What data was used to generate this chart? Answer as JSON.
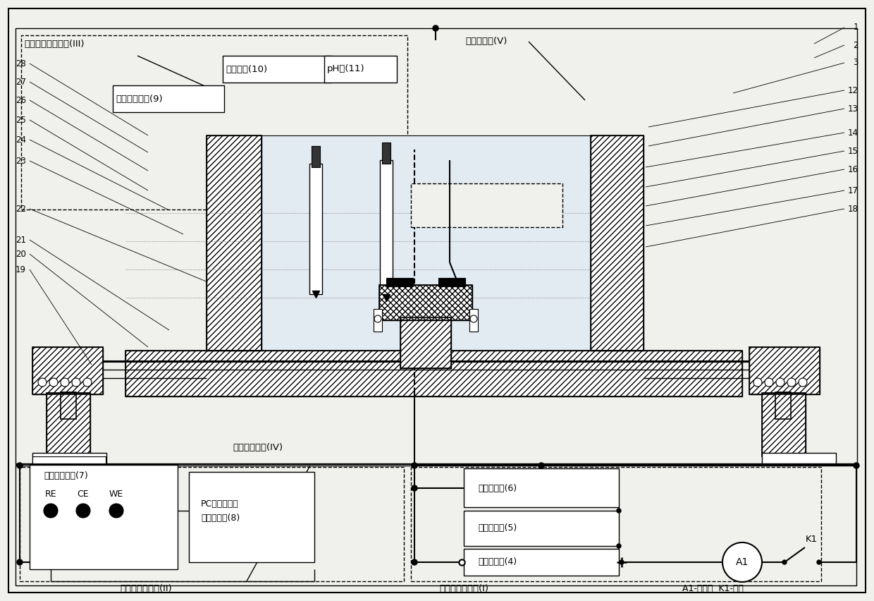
{
  "fig_w": 12.4,
  "fig_h": 8.52,
  "bg": "#f0f0ec",
  "lc": "#000000",
  "sysIII": "土壤模拟溶液系统(III)",
  "sysV": "电解池系统(V)",
  "sysIV": "试样夹持系统(IV)",
  "sysII": "电化学测试系统(II)",
  "sysI": "直流电加载系统(I)",
  "lbl9": "土壤模拟溶液(9)",
  "lbl10": "电导率仪(10)",
  "lbl11": "pH计(11)",
  "lbl4": "直流稳压源(4)",
  "lbl5": "定时中断器(5)",
  "lbl6": "电位显示仪(6)",
  "lbl7": "电化学工作站(7)",
  "lbl8a": "PC端数据采集",
  "lbl8b": "与分析系统(8)",
  "A1txt": "A1-电流表  K1-开关",
  "RE": "RE",
  "CE": "CE",
  "WE": "WE",
  "A1": "A1",
  "K1": "K1"
}
